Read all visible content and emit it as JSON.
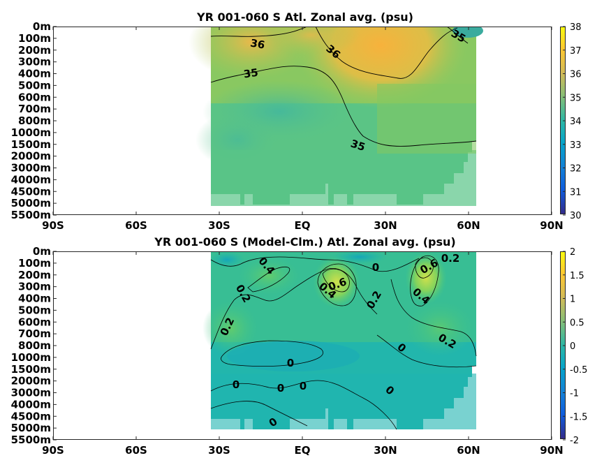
{
  "chart_data": [
    {
      "type": "heatmap",
      "title": "YR 001-060 S Atl. Zonal avg. (psu)",
      "x_tick_labels": [
        "90S",
        "60S",
        "30S",
        "EQ",
        "30N",
        "60N",
        "90N"
      ],
      "x_ticks": [
        -90,
        -60,
        -30,
        0,
        30,
        60,
        90
      ],
      "y_tick_labels": [
        "0m",
        "100m",
        "200m",
        "300m",
        "400m",
        "500m",
        "600m",
        "700m",
        "800m",
        "1000m",
        "1500m",
        "2000m",
        "3000m",
        "4000m",
        "4500m",
        "5000m",
        "5500m"
      ],
      "colorbar": {
        "min": 30,
        "max": 38,
        "ticks": [
          30,
          31,
          32,
          33,
          34,
          35,
          36,
          37,
          38
        ]
      },
      "data_extent": {
        "lat_min": -34,
        "lat_max": 63
      },
      "contour_labels": [
        "36",
        "36",
        "35",
        "35",
        "35"
      ],
      "colors": {
        "fresh": "#3ea8a0",
        "mid": "#58c47a",
        "salty": "#f5b942",
        "max": "#f9a53a"
      }
    },
    {
      "type": "heatmap",
      "title": "YR 001-060 S (Model-Clm.) Atl. Zonal avg. (psu)",
      "x_tick_labels": [
        "90S",
        "60S",
        "30S",
        "EQ",
        "30N",
        "60N",
        "90N"
      ],
      "x_ticks": [
        -90,
        -60,
        -30,
        0,
        30,
        60,
        90
      ],
      "y_tick_labels": [
        "0m",
        "100m",
        "200m",
        "300m",
        "400m",
        "500m",
        "600m",
        "700m",
        "800m",
        "1000m",
        "1500m",
        "2000m",
        "3000m",
        "4000m",
        "4500m",
        "5000m",
        "5500m"
      ],
      "colorbar": {
        "min": -2,
        "max": 2,
        "ticks": [
          -2,
          -1.5,
          -1,
          -0.5,
          0,
          0.5,
          1,
          1.5,
          2
        ]
      },
      "data_extent": {
        "lat_min": -34,
        "lat_max": 63
      },
      "contour_labels": [
        "0.4",
        "0.2",
        "0.2",
        "0.6",
        "0.4",
        "0",
        "0.2",
        "0.6",
        "0.2",
        "0.4",
        "0.2",
        "0",
        "0",
        "0",
        "0",
        "0",
        "0",
        "0"
      ],
      "colors": {
        "neg": "#20a4b4",
        "zero": "#1fb8a8",
        "pos_small": "#3cc28a",
        "pos": "#70d060",
        "peak": "#d6e04a"
      }
    }
  ]
}
